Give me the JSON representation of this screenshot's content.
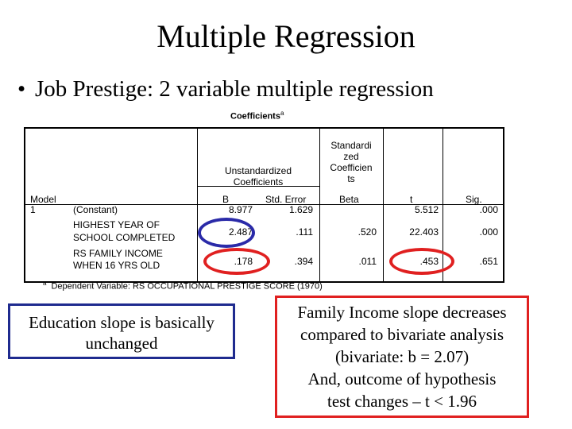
{
  "title": "Multiple Regression",
  "bullet": "Job Prestige:  2 variable multiple regression",
  "table": {
    "caption": "Coefficients",
    "caption_sup": "a",
    "headers": {
      "model": "Model",
      "unstd_line1": "Unstandardized",
      "unstd_line2": "Coefficients",
      "std_1": "Standardi",
      "std_2": "zed",
      "std_3": "Coefficien",
      "std_4": "ts",
      "b": "B",
      "se": "Std. Error",
      "beta": "Beta",
      "t": "t",
      "sig": "Sig."
    },
    "model_number": "1",
    "rows": [
      {
        "label1": "(Constant)",
        "label2": "",
        "b": "8.977",
        "se": "1.629",
        "beta": "",
        "t": "5.512",
        "sig": ".000"
      },
      {
        "label1": "HIGHEST YEAR OF",
        "label2": "SCHOOL COMPLETED",
        "b": "2.487",
        "se": ".111",
        "beta": ".520",
        "t": "22.403",
        "sig": ".000"
      },
      {
        "label1": "RS FAMILY INCOME",
        "label2": "WHEN 16 YRS OLD",
        "b": ".178",
        "se": ".394",
        "beta": ".011",
        "t": ".453",
        "sig": ".651"
      }
    ],
    "footnote_sup": "a",
    "footnote": "Dependent Variable: RS OCCUPATIONAL PRESTIGE SCORE  (1970)"
  },
  "notes": {
    "left": [
      "Education slope is basically",
      "unchanged"
    ],
    "right": [
      "Family Income slope decreases",
      "compared to bivariate analysis",
      "(bivariate:  b = 2.07)",
      "And, outcome of hypothesis",
      "test changes – t < 1.96"
    ]
  },
  "colors": {
    "blue_oval": "#2a2aa8",
    "red_oval": "#e02020",
    "left_box_border": "#1f2b8f",
    "right_box_border": "#e02020"
  }
}
